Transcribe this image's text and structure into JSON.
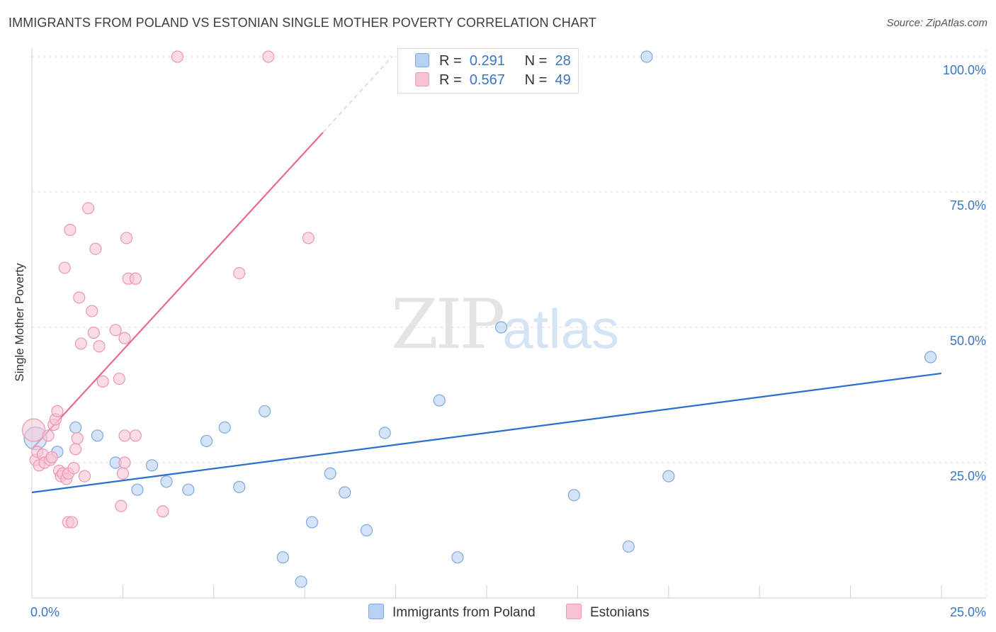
{
  "title": "IMMIGRANTS FROM POLAND VS ESTONIAN SINGLE MOTHER POVERTY CORRELATION CHART",
  "source": "Source: ZipAtlas.com",
  "watermark": {
    "zip": "ZIP",
    "atlas": "atlas"
  },
  "legend": {
    "rows": [
      {
        "r_label": "R =",
        "r_value": "0.291",
        "n_label": "N =",
        "n_value": "28"
      },
      {
        "r_label": "R =",
        "r_value": "0.567",
        "n_label": "N =",
        "n_value": "49"
      }
    ]
  },
  "bottom_legend": {
    "poland": "Immigrants from Poland",
    "estonians": "Estonians"
  },
  "colors": {
    "poland_fill": "#b7d1f2",
    "poland_stroke": "#7fa8dc",
    "poland_line": "#2b6fcd",
    "estonian_fill": "#f8c4d4",
    "estonian_stroke": "#ec96b2",
    "estonian_line": "#e8698f",
    "tick_label": "#3a75c4",
    "grid": "#e2e2e2"
  },
  "chart_data": {
    "type": "scatter",
    "title": "IMMIGRANTS FROM POLAND VS ESTONIAN SINGLE MOTHER POVERTY CORRELATION CHART",
    "xlabel": "",
    "ylabel": "Single Mother Poverty",
    "xlim": [
      0,
      25
    ],
    "ylim": [
      0,
      100
    ],
    "x_tick_labels": [
      "0.0%",
      "25.0%"
    ],
    "y_ticks": [
      25,
      50,
      75,
      100
    ],
    "y_tick_labels": [
      "25.0%",
      "50.0%",
      "75.0%",
      "100.0%"
    ],
    "grid": true,
    "series": [
      {
        "name": "Immigrants from Poland",
        "R": 0.291,
        "N": 28,
        "trend": {
          "x": [
            0,
            25
          ],
          "y": [
            19.5,
            41.5
          ],
          "dashed_extension": false
        },
        "points": [
          {
            "x": 0.1,
            "y": 29.5,
            "big": true
          },
          {
            "x": 0.7,
            "y": 27.0
          },
          {
            "x": 1.2,
            "y": 31.5
          },
          {
            "x": 1.8,
            "y": 30.0
          },
          {
            "x": 2.3,
            "y": 25.0
          },
          {
            "x": 2.9,
            "y": 20.0
          },
          {
            "x": 3.3,
            "y": 24.5
          },
          {
            "x": 3.7,
            "y": 21.5
          },
          {
            "x": 4.3,
            "y": 20.0
          },
          {
            "x": 4.8,
            "y": 29.0
          },
          {
            "x": 5.3,
            "y": 31.5
          },
          {
            "x": 5.7,
            "y": 20.5
          },
          {
            "x": 6.4,
            "y": 34.5
          },
          {
            "x": 6.9,
            "y": 7.5
          },
          {
            "x": 7.4,
            "y": 3.0
          },
          {
            "x": 7.7,
            "y": 14.0
          },
          {
            "x": 8.2,
            "y": 23.0
          },
          {
            "x": 8.6,
            "y": 19.5
          },
          {
            "x": 9.2,
            "y": 12.5
          },
          {
            "x": 9.7,
            "y": 30.5
          },
          {
            "x": 11.2,
            "y": 36.5
          },
          {
            "x": 11.7,
            "y": 7.5
          },
          {
            "x": 12.9,
            "y": 50.0
          },
          {
            "x": 14.9,
            "y": 19.0
          },
          {
            "x": 16.4,
            "y": 9.5
          },
          {
            "x": 16.9,
            "y": 100.0
          },
          {
            "x": 17.5,
            "y": 22.5
          },
          {
            "x": 24.7,
            "y": 44.5
          }
        ]
      },
      {
        "name": "Estonians",
        "R": 0.567,
        "N": 49,
        "trend": {
          "x": [
            0,
            8.0
          ],
          "y": [
            27.5,
            86.0
          ],
          "dashed_extension": {
            "x": [
              8.0,
              9.9
            ],
            "y": [
              86.0,
              100.0
            ]
          }
        },
        "points": [
          {
            "x": 0.05,
            "y": 31.0,
            "big": true
          },
          {
            "x": 0.1,
            "y": 25.5
          },
          {
            "x": 0.15,
            "y": 27.0
          },
          {
            "x": 0.2,
            "y": 24.5
          },
          {
            "x": 0.3,
            "y": 26.5
          },
          {
            "x": 0.35,
            "y": 25.0
          },
          {
            "x": 0.45,
            "y": 30.0
          },
          {
            "x": 0.5,
            "y": 25.5
          },
          {
            "x": 0.55,
            "y": 26.0
          },
          {
            "x": 0.6,
            "y": 32.0
          },
          {
            "x": 0.65,
            "y": 33.0
          },
          {
            "x": 0.7,
            "y": 34.5
          },
          {
            "x": 0.75,
            "y": 23.5
          },
          {
            "x": 0.8,
            "y": 22.5
          },
          {
            "x": 0.85,
            "y": 23.0
          },
          {
            "x": 0.9,
            "y": 61.0
          },
          {
            "x": 0.95,
            "y": 22.0
          },
          {
            "x": 1.0,
            "y": 23.0
          },
          {
            "x": 1.05,
            "y": 68.0
          },
          {
            "x": 1.0,
            "y": 14.0
          },
          {
            "x": 1.1,
            "y": 14.0
          },
          {
            "x": 1.15,
            "y": 24.0
          },
          {
            "x": 1.2,
            "y": 27.5
          },
          {
            "x": 1.25,
            "y": 29.5
          },
          {
            "x": 1.3,
            "y": 55.5
          },
          {
            "x": 1.35,
            "y": 47.0
          },
          {
            "x": 1.45,
            "y": 22.5
          },
          {
            "x": 1.55,
            "y": 72.0
          },
          {
            "x": 1.65,
            "y": 53.0
          },
          {
            "x": 1.7,
            "y": 49.0
          },
          {
            "x": 1.75,
            "y": 64.5
          },
          {
            "x": 1.85,
            "y": 46.5
          },
          {
            "x": 1.95,
            "y": 40.0
          },
          {
            "x": 2.3,
            "y": 49.5
          },
          {
            "x": 2.4,
            "y": 40.5
          },
          {
            "x": 2.5,
            "y": 23.0
          },
          {
            "x": 2.55,
            "y": 25.0
          },
          {
            "x": 2.6,
            "y": 66.5
          },
          {
            "x": 2.45,
            "y": 17.0
          },
          {
            "x": 2.55,
            "y": 30.0
          },
          {
            "x": 2.55,
            "y": 48.0
          },
          {
            "x": 2.65,
            "y": 59.0
          },
          {
            "x": 2.85,
            "y": 59.0
          },
          {
            "x": 2.85,
            "y": 30.0
          },
          {
            "x": 3.6,
            "y": 16.0
          },
          {
            "x": 4.0,
            "y": 100.0
          },
          {
            "x": 5.7,
            "y": 60.0
          },
          {
            "x": 6.5,
            "y": 100.0
          },
          {
            "x": 7.6,
            "y": 66.5
          }
        ]
      }
    ]
  }
}
